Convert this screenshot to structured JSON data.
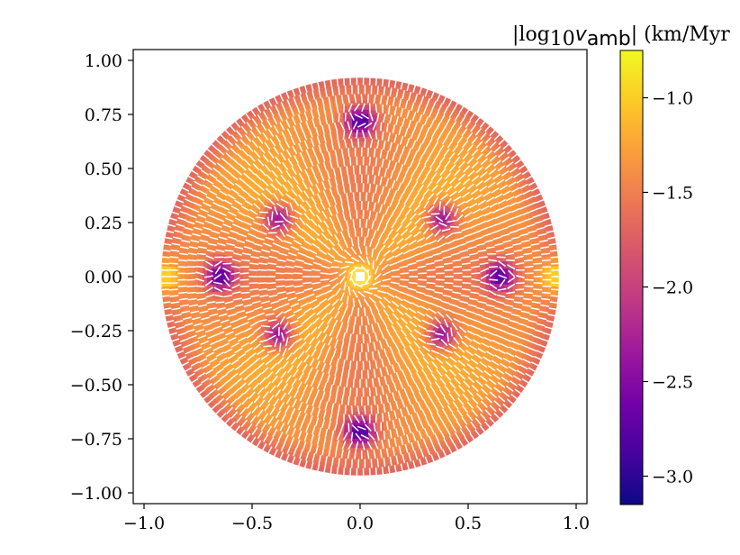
{
  "chart_data": {
    "type": "heatmap",
    "subtype": "polar-disk-with-vector-field",
    "title": "",
    "xlabel": "",
    "ylabel": "",
    "xlim": [
      -1.05,
      1.05
    ],
    "ylim": [
      -1.05,
      1.05
    ],
    "disk_radius": 0.92,
    "x_ticks": [
      -1.0,
      -0.5,
      0.0,
      0.5,
      1.0
    ],
    "x_tick_labels": [
      "−1.0",
      "−0.5",
      "0.0",
      "0.5",
      "1.0"
    ],
    "y_ticks": [
      1.0,
      0.75,
      0.5,
      0.25,
      0.0,
      -0.25,
      -0.5,
      -0.75,
      -1.0
    ],
    "y_tick_labels": [
      "1.00",
      "0.75",
      "0.50",
      "0.25",
      "0.00",
      "−0.25",
      "−0.50",
      "−0.75",
      "−1.00"
    ],
    "colorbar": {
      "label_prefix": "|log",
      "label_sub": "10",
      "label_var": "v",
      "label_var_sub": "amb",
      "label_suffix": "| (km/Myr",
      "colormap": "plasma",
      "range": [
        -3.15,
        -0.75
      ],
      "ticks": [
        -1.0,
        -1.5,
        -2.0,
        -2.5,
        -3.0
      ],
      "tick_labels": [
        "−1.0",
        "−1.5",
        "−2.0",
        "−2.5",
        "−3.0"
      ],
      "colors": [
        "#0d0887",
        "#46039f",
        "#7201a8",
        "#9c179e",
        "#bd3786",
        "#d8576b",
        "#ed7953",
        "#fb9f3a",
        "#fdca26",
        "#f0f921"
      ]
    },
    "minima": [
      {
        "x": 0.0,
        "y": 0.72,
        "value": -2.9
      },
      {
        "x": 0.0,
        "y": -0.72,
        "value": -2.9
      },
      {
        "x": -0.65,
        "y": 0.0,
        "value": -2.8
      },
      {
        "x": 0.65,
        "y": 0.0,
        "value": -2.8
      },
      {
        "x": -0.38,
        "y": 0.27,
        "value": -2.6
      },
      {
        "x": 0.38,
        "y": 0.27,
        "value": -2.6
      },
      {
        "x": -0.38,
        "y": -0.27,
        "value": -2.6
      },
      {
        "x": 0.38,
        "y": -0.27,
        "value": -2.6
      }
    ],
    "maxima": [
      {
        "x": 0.0,
        "y": 0.0,
        "value": -0.8
      },
      {
        "x": -0.9,
        "y": 0.0,
        "value": -0.9
      },
      {
        "x": 0.9,
        "y": 0.0,
        "value": -0.9
      }
    ],
    "background_value": -1.35,
    "vector_color": "#ffffff"
  }
}
